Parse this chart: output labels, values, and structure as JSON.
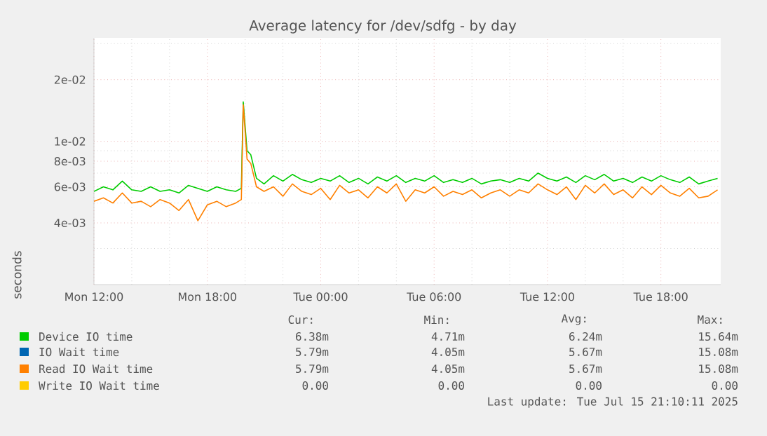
{
  "chart_data": {
    "type": "line",
    "title": "Average latency for /dev/sdfg - by day",
    "ylabel": "seconds",
    "log": true,
    "grid": true,
    "legend": "bottom",
    "marker": "none",
    "line_style": "solid",
    "x": [
      "2025-07-14T12:00",
      "2025-07-14T12:30",
      "2025-07-14T13:00",
      "2025-07-14T13:30",
      "2025-07-14T14:00",
      "2025-07-14T14:30",
      "2025-07-14T15:00",
      "2025-07-14T15:30",
      "2025-07-14T16:00",
      "2025-07-14T16:30",
      "2025-07-14T17:00",
      "2025-07-14T17:30",
      "2025-07-14T18:00",
      "2025-07-14T18:30",
      "2025-07-14T19:00",
      "2025-07-14T19:30",
      "2025-07-14T19:48",
      "2025-07-14T19:54",
      "2025-07-14T20:06",
      "2025-07-14T20:18",
      "2025-07-14T20:36",
      "2025-07-14T21:00",
      "2025-07-14T21:30",
      "2025-07-14T22:00",
      "2025-07-14T22:30",
      "2025-07-14T23:00",
      "2025-07-14T23:30",
      "2025-07-15T00:00",
      "2025-07-15T00:30",
      "2025-07-15T01:00",
      "2025-07-15T01:30",
      "2025-07-15T02:00",
      "2025-07-15T02:30",
      "2025-07-15T03:00",
      "2025-07-15T03:30",
      "2025-07-15T04:00",
      "2025-07-15T04:30",
      "2025-07-15T05:00",
      "2025-07-15T05:30",
      "2025-07-15T06:00",
      "2025-07-15T06:30",
      "2025-07-15T07:00",
      "2025-07-15T07:30",
      "2025-07-15T08:00",
      "2025-07-15T08:30",
      "2025-07-15T09:00",
      "2025-07-15T09:30",
      "2025-07-15T10:00",
      "2025-07-15T10:30",
      "2025-07-15T11:00",
      "2025-07-15T11:30",
      "2025-07-15T12:00",
      "2025-07-15T12:30",
      "2025-07-15T13:00",
      "2025-07-15T13:30",
      "2025-07-15T14:00",
      "2025-07-15T14:30",
      "2025-07-15T15:00",
      "2025-07-15T15:30",
      "2025-07-15T16:00",
      "2025-07-15T16:30",
      "2025-07-15T17:00",
      "2025-07-15T17:30",
      "2025-07-15T18:00",
      "2025-07-15T18:30",
      "2025-07-15T19:00",
      "2025-07-15T19:30",
      "2025-07-15T20:00",
      "2025-07-15T20:30",
      "2025-07-15T21:00"
    ],
    "xlim": [
      "2025-07-14T12:00",
      "2025-07-15T21:10"
    ],
    "xticks": [
      {
        "value": "2025-07-14T12:00",
        "label": "Mon 12:00"
      },
      {
        "value": "2025-07-14T18:00",
        "label": "Mon 18:00"
      },
      {
        "value": "2025-07-15T00:00",
        "label": "Tue 00:00"
      },
      {
        "value": "2025-07-15T06:00",
        "label": "Tue 06:00"
      },
      {
        "value": "2025-07-15T12:00",
        "label": "Tue 12:00"
      },
      {
        "value": "2025-07-15T18:00",
        "label": "Tue 18:00"
      }
    ],
    "ylim": [
      0.002,
      0.032
    ],
    "yticks": [
      {
        "value": 0.003,
        "label": null
      },
      {
        "value": 0.004,
        "label": "4e-03"
      },
      {
        "value": 0.005,
        "label": null
      },
      {
        "value": 0.006,
        "label": "6e-03"
      },
      {
        "value": 0.007,
        "label": null
      },
      {
        "value": 0.008,
        "label": "8e-03"
      },
      {
        "value": 0.009,
        "label": null
      },
      {
        "value": 0.01,
        "label": "1e-02"
      },
      {
        "value": 0.02,
        "label": "2e-02"
      },
      {
        "value": 0.03,
        "label": null
      }
    ],
    "series": [
      {
        "name": "Device IO time",
        "color": "#00cc00",
        "values": [
          0.0057,
          0.006,
          0.0058,
          0.0064,
          0.0058,
          0.0057,
          0.006,
          0.0057,
          0.0058,
          0.0056,
          0.0061,
          0.0059,
          0.0057,
          0.006,
          0.0058,
          0.0057,
          0.0059,
          0.0156,
          0.009,
          0.0086,
          0.0066,
          0.0062,
          0.0068,
          0.0064,
          0.0069,
          0.0065,
          0.0063,
          0.0066,
          0.0064,
          0.0068,
          0.0063,
          0.0066,
          0.0062,
          0.0067,
          0.0064,
          0.0068,
          0.0063,
          0.0066,
          0.0064,
          0.0068,
          0.0063,
          0.0065,
          0.0063,
          0.0066,
          0.0062,
          0.0064,
          0.0065,
          0.0063,
          0.0066,
          0.0064,
          0.007,
          0.0066,
          0.0064,
          0.0067,
          0.0063,
          0.0068,
          0.0065,
          0.0069,
          0.0064,
          0.0066,
          0.0063,
          0.0067,
          0.0064,
          0.0068,
          0.0065,
          0.0063,
          0.0067,
          0.0062,
          0.0064,
          0.0066
        ]
      },
      {
        "name": "IO Wait time",
        "color": "#0066b3",
        "values": [
          null,
          null,
          null,
          null,
          null,
          null,
          null,
          null,
          null,
          null,
          null,
          null,
          null,
          null,
          null,
          null,
          null,
          null,
          null,
          null,
          null,
          null,
          null,
          null,
          null,
          null,
          null,
          null,
          null,
          null,
          null,
          null,
          null,
          null,
          null,
          null,
          null,
          null,
          null,
          null,
          null,
          null,
          null,
          null,
          null,
          null,
          null,
          null,
          null,
          null,
          null,
          null,
          null,
          null,
          null,
          null,
          null,
          null,
          null,
          null,
          null,
          null,
          null,
          null,
          null,
          null,
          null,
          null,
          null,
          null
        ]
      },
      {
        "name": "Read IO Wait time",
        "color": "#ff8000",
        "values": [
          0.0051,
          0.0053,
          0.005,
          0.0056,
          0.005,
          0.0051,
          0.0048,
          0.0052,
          0.005,
          0.0046,
          0.0052,
          0.0041,
          0.0049,
          0.0051,
          0.0048,
          0.005,
          0.0052,
          0.0151,
          0.0082,
          0.0078,
          0.006,
          0.0057,
          0.006,
          0.0054,
          0.0062,
          0.0057,
          0.0055,
          0.0059,
          0.0052,
          0.0061,
          0.0056,
          0.0058,
          0.0053,
          0.006,
          0.0056,
          0.0062,
          0.0051,
          0.0058,
          0.0056,
          0.006,
          0.0054,
          0.0057,
          0.0055,
          0.0058,
          0.0053,
          0.0056,
          0.0058,
          0.0054,
          0.0058,
          0.0056,
          0.0062,
          0.0058,
          0.0055,
          0.006,
          0.0052,
          0.0061,
          0.0056,
          0.0062,
          0.0055,
          0.0058,
          0.0053,
          0.006,
          0.0055,
          0.0061,
          0.0056,
          0.0054,
          0.0059,
          0.0053,
          0.0054,
          0.0058
        ]
      },
      {
        "name": "Write IO Wait time",
        "color": "#ffcc00",
        "values": [
          null,
          null,
          null,
          null,
          null,
          null,
          null,
          null,
          null,
          null,
          null,
          null,
          null,
          null,
          null,
          null,
          null,
          null,
          null,
          null,
          null,
          null,
          null,
          null,
          null,
          null,
          null,
          null,
          null,
          null,
          null,
          null,
          null,
          null,
          null,
          null,
          null,
          null,
          null,
          null,
          null,
          null,
          null,
          null,
          null,
          null,
          null,
          null,
          null,
          null,
          null,
          null,
          null,
          null,
          null,
          null,
          null,
          null,
          null,
          null,
          null,
          null,
          null,
          null,
          null,
          null,
          null,
          null,
          null,
          null
        ]
      }
    ],
    "annotations": [
      "Cur:",
      "Min:",
      "Avg:",
      "Max:",
      "6.38m",
      "4.71m",
      "6.24m",
      "15.64m",
      "5.79m",
      "4.05m",
      "5.67m",
      "15.08m",
      "5.79m",
      "4.05m",
      "5.67m",
      "15.08m",
      "0.00",
      "0.00",
      "0.00",
      "0.00",
      "Last update: Tue Jul 15 21:10:11 2025"
    ]
  }
}
